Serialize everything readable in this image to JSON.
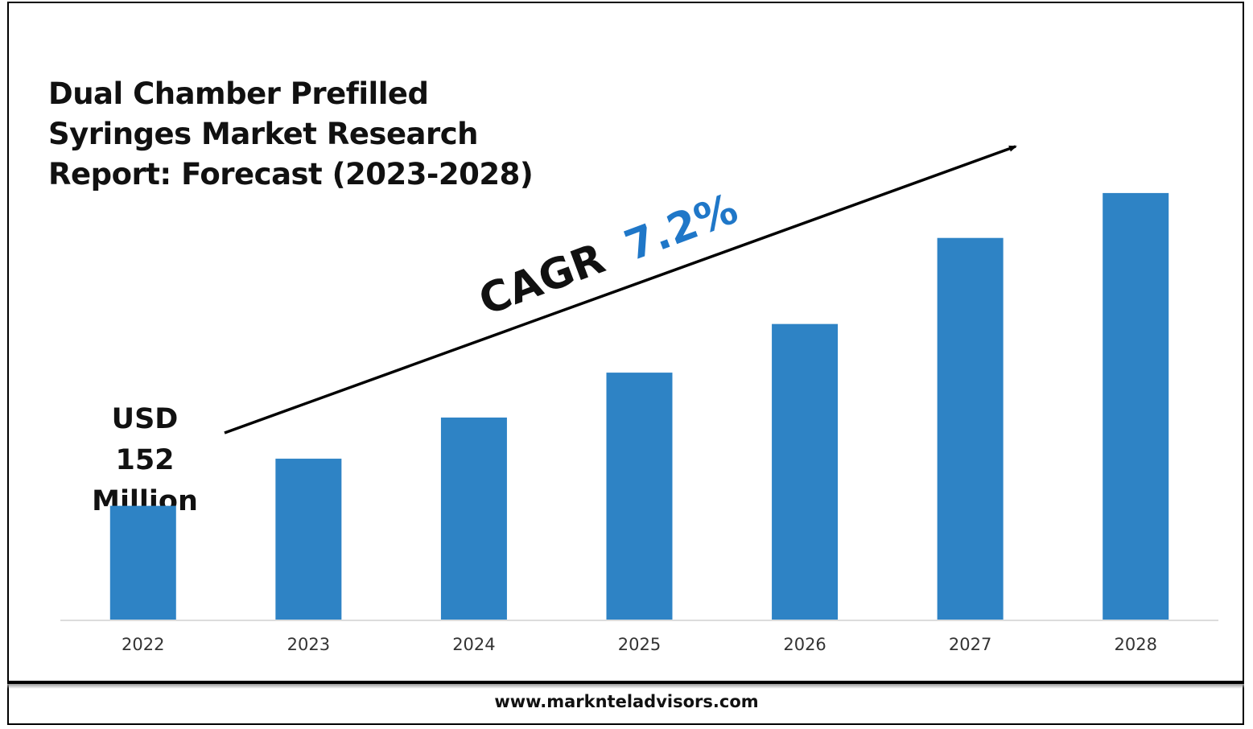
{
  "chart_data": {
    "type": "bar",
    "title": "Dual Chamber Prefilled Syringes Market Research Report: Forecast (2023-2028)",
    "categories": [
      "2022",
      "2023",
      "2024",
      "2025",
      "2026",
      "2027",
      "2028"
    ],
    "values": [
      152,
      215,
      270,
      330,
      395,
      510,
      570
    ],
    "ylim": [
      0,
      600
    ],
    "grid": false,
    "legend": "none",
    "bar_color": "#2e83c5",
    "annotations": {
      "base_value": "USD 152 Million",
      "base_value_lines": [
        "USD",
        "152",
        "Million"
      ],
      "cagr_label": "CAGR",
      "cagr_value": "7.2%",
      "cagr_color": "#1f77c8"
    }
  },
  "footer": {
    "url": "www.marknteladvisors.com"
  }
}
